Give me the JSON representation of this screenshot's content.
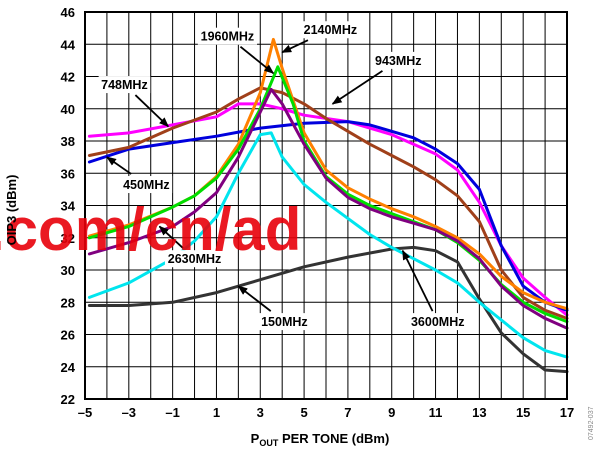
{
  "chart_data": {
    "type": "line",
    "xlabel_main": "P",
    "xlabel_sub": "OUT",
    "xlabel_rest": " PER TONE (dBm)",
    "ylabel": "OIP3 (dBm)",
    "xlim": [
      -5,
      17
    ],
    "ylim": [
      22,
      46
    ],
    "x_ticks": [
      -5,
      -3,
      -1,
      1,
      3,
      5,
      7,
      9,
      11,
      13,
      15,
      17
    ],
    "y_ticks": [
      22,
      24,
      26,
      28,
      30,
      32,
      34,
      36,
      38,
      40,
      42,
      44,
      46
    ],
    "grid": true,
    "series": [
      {
        "name": "748MHz",
        "color": "#ff00ff",
        "points": [
          [
            -4.8,
            38.3
          ],
          [
            -3,
            38.5
          ],
          [
            -1,
            39.0
          ],
          [
            1,
            39.5
          ],
          [
            2,
            40.3
          ],
          [
            3,
            40.3
          ],
          [
            4,
            40.0
          ],
          [
            5,
            39.6
          ],
          [
            7,
            39.2
          ],
          [
            9,
            38.4
          ],
          [
            11,
            37.2
          ],
          [
            12,
            36.2
          ],
          [
            13,
            34.2
          ],
          [
            14,
            31.5
          ],
          [
            15,
            29.5
          ],
          [
            16,
            28.3
          ],
          [
            17,
            27.2
          ]
        ]
      },
      {
        "name": "450MHz",
        "color": "#0000dd",
        "points": [
          [
            -4.8,
            36.7
          ],
          [
            -3,
            37.5
          ],
          [
            -1,
            37.9
          ],
          [
            1,
            38.3
          ],
          [
            3,
            38.8
          ],
          [
            5,
            39.1
          ],
          [
            7,
            39.2
          ],
          [
            8,
            39.0
          ],
          [
            9,
            38.6
          ],
          [
            10,
            38.2
          ],
          [
            11,
            37.5
          ],
          [
            12,
            36.6
          ],
          [
            13,
            35.0
          ],
          [
            14,
            31.5
          ],
          [
            15,
            29.0
          ],
          [
            16,
            28.0
          ],
          [
            17,
            27.5
          ]
        ]
      },
      {
        "name": "943MHz",
        "color": "#a0401a",
        "points": [
          [
            -4.8,
            37.1
          ],
          [
            -3,
            37.6
          ],
          [
            -1,
            38.8
          ],
          [
            1,
            39.8
          ],
          [
            2,
            40.6
          ],
          [
            3,
            41.3
          ],
          [
            4,
            41.0
          ],
          [
            5,
            40.3
          ],
          [
            6,
            39.4
          ],
          [
            7,
            38.6
          ],
          [
            8,
            37.8
          ],
          [
            9,
            37.1
          ],
          [
            10,
            36.4
          ],
          [
            11,
            35.6
          ],
          [
            12,
            34.6
          ],
          [
            13,
            33.0
          ],
          [
            14,
            30.0
          ],
          [
            15,
            28.3
          ],
          [
            16,
            27.5
          ],
          [
            17,
            27.0
          ]
        ]
      },
      {
        "name": "2140MHz",
        "color": "#ff8000",
        "points": [
          [
            -4.8,
            32.1
          ],
          [
            -3,
            32.8
          ],
          [
            -1,
            33.9
          ],
          [
            0,
            34.6
          ],
          [
            1,
            35.8
          ],
          [
            2,
            37.8
          ],
          [
            3,
            41.0
          ],
          [
            3.6,
            44.3
          ],
          [
            4,
            42.5
          ],
          [
            5,
            38.5
          ],
          [
            6,
            36.2
          ],
          [
            7,
            35.1
          ],
          [
            8,
            34.4
          ],
          [
            9,
            33.8
          ],
          [
            10,
            33.3
          ],
          [
            11,
            32.7
          ],
          [
            12,
            32.0
          ],
          [
            13,
            31.0
          ],
          [
            14,
            29.6
          ],
          [
            15,
            28.6
          ],
          [
            16,
            28.0
          ],
          [
            17,
            27.6
          ]
        ]
      },
      {
        "name": "1960MHz",
        "color": "#00dd00",
        "points": [
          [
            -4.8,
            32.0
          ],
          [
            -3,
            32.7
          ],
          [
            -1,
            33.9
          ],
          [
            0,
            34.6
          ],
          [
            1,
            35.7
          ],
          [
            2,
            37.5
          ],
          [
            3,
            40.0
          ],
          [
            3.8,
            42.6
          ],
          [
            4.5,
            40.3
          ],
          [
            5,
            38.0
          ],
          [
            6,
            35.8
          ],
          [
            7,
            34.7
          ],
          [
            8,
            34.0
          ],
          [
            9,
            33.5
          ],
          [
            10,
            33.0
          ],
          [
            11,
            32.5
          ],
          [
            12,
            31.7
          ],
          [
            13,
            30.6
          ],
          [
            14,
            29.1
          ],
          [
            15,
            28.0
          ],
          [
            16,
            27.3
          ],
          [
            17,
            26.8
          ]
        ]
      },
      {
        "name": "2630MHz",
        "color": "#800080",
        "points": [
          [
            -4.8,
            31.0
          ],
          [
            -3,
            31.7
          ],
          [
            -1,
            32.7
          ],
          [
            0,
            33.6
          ],
          [
            1,
            34.8
          ],
          [
            2,
            37.0
          ],
          [
            3,
            39.8
          ],
          [
            3.5,
            41.2
          ],
          [
            4,
            40.3
          ],
          [
            5,
            37.8
          ],
          [
            6,
            35.7
          ],
          [
            7,
            34.5
          ],
          [
            8,
            33.8
          ],
          [
            9,
            33.3
          ],
          [
            10,
            32.9
          ],
          [
            11,
            32.5
          ],
          [
            12,
            31.8
          ],
          [
            13,
            30.7
          ],
          [
            14,
            29.0
          ],
          [
            15,
            27.8
          ],
          [
            16,
            27.0
          ],
          [
            17,
            26.4
          ]
        ]
      },
      {
        "name": "150MHz",
        "color": "#333333",
        "points": [
          [
            -4.8,
            27.8
          ],
          [
            -3,
            27.8
          ],
          [
            -1,
            28.0
          ],
          [
            1,
            28.6
          ],
          [
            3,
            29.4
          ],
          [
            5,
            30.2
          ],
          [
            7,
            30.8
          ],
          [
            9,
            31.3
          ],
          [
            10,
            31.4
          ],
          [
            11,
            31.2
          ],
          [
            12,
            30.5
          ],
          [
            13,
            28.2
          ],
          [
            14,
            26.1
          ],
          [
            15,
            24.8
          ],
          [
            16,
            23.8
          ],
          [
            17,
            23.7
          ]
        ]
      },
      {
        "name": "3600MHz",
        "color": "#00e5ee",
        "points": [
          [
            -4.8,
            28.3
          ],
          [
            -3,
            29.2
          ],
          [
            -1,
            30.7
          ],
          [
            0,
            31.8
          ],
          [
            1,
            33.3
          ],
          [
            2,
            36.0
          ],
          [
            3,
            38.4
          ],
          [
            3.5,
            38.5
          ],
          [
            4,
            37.0
          ],
          [
            5,
            35.3
          ],
          [
            6,
            34.2
          ],
          [
            7,
            33.2
          ],
          [
            8,
            32.2
          ],
          [
            9,
            31.4
          ],
          [
            10,
            30.7
          ],
          [
            11,
            30.0
          ],
          [
            12,
            29.2
          ],
          [
            13,
            28.0
          ],
          [
            14,
            26.9
          ],
          [
            15,
            25.8
          ],
          [
            16,
            25.0
          ],
          [
            17,
            24.6
          ]
        ]
      }
    ],
    "annotations": [
      {
        "text": "1960MHz",
        "label": [
          1.5,
          44.5
        ],
        "arrow_to": [
          3.6,
          42.2
        ]
      },
      {
        "text": "2140MHz",
        "label": [
          6.2,
          44.9
        ],
        "arrow_to": [
          4.0,
          43.5
        ]
      },
      {
        "text": "943MHz",
        "label": [
          9.3,
          43.0
        ],
        "arrow_to": [
          6.3,
          40.3
        ]
      },
      {
        "text": "748MHz",
        "label": [
          -3.2,
          41.5
        ],
        "arrow_to": [
          -1.2,
          38.9
        ]
      },
      {
        "text": "450MHz",
        "label": [
          -2.2,
          35.3
        ],
        "arrow_to": [
          -4.0,
          37.0
        ]
      },
      {
        "text": "2630MHz",
        "label": [
          0.0,
          30.7
        ],
        "arrow_to": [
          -1.6,
          32.7
        ]
      },
      {
        "text": "150MHz",
        "label": [
          4.1,
          26.8
        ],
        "arrow_to": [
          2.0,
          29.0
        ]
      },
      {
        "text": "3600MHz",
        "label": [
          11.1,
          26.8
        ],
        "arrow_to": [
          9.5,
          31.2
        ]
      }
    ]
  },
  "watermark": ".com/cn/ad",
  "figure_id": "07492-037"
}
